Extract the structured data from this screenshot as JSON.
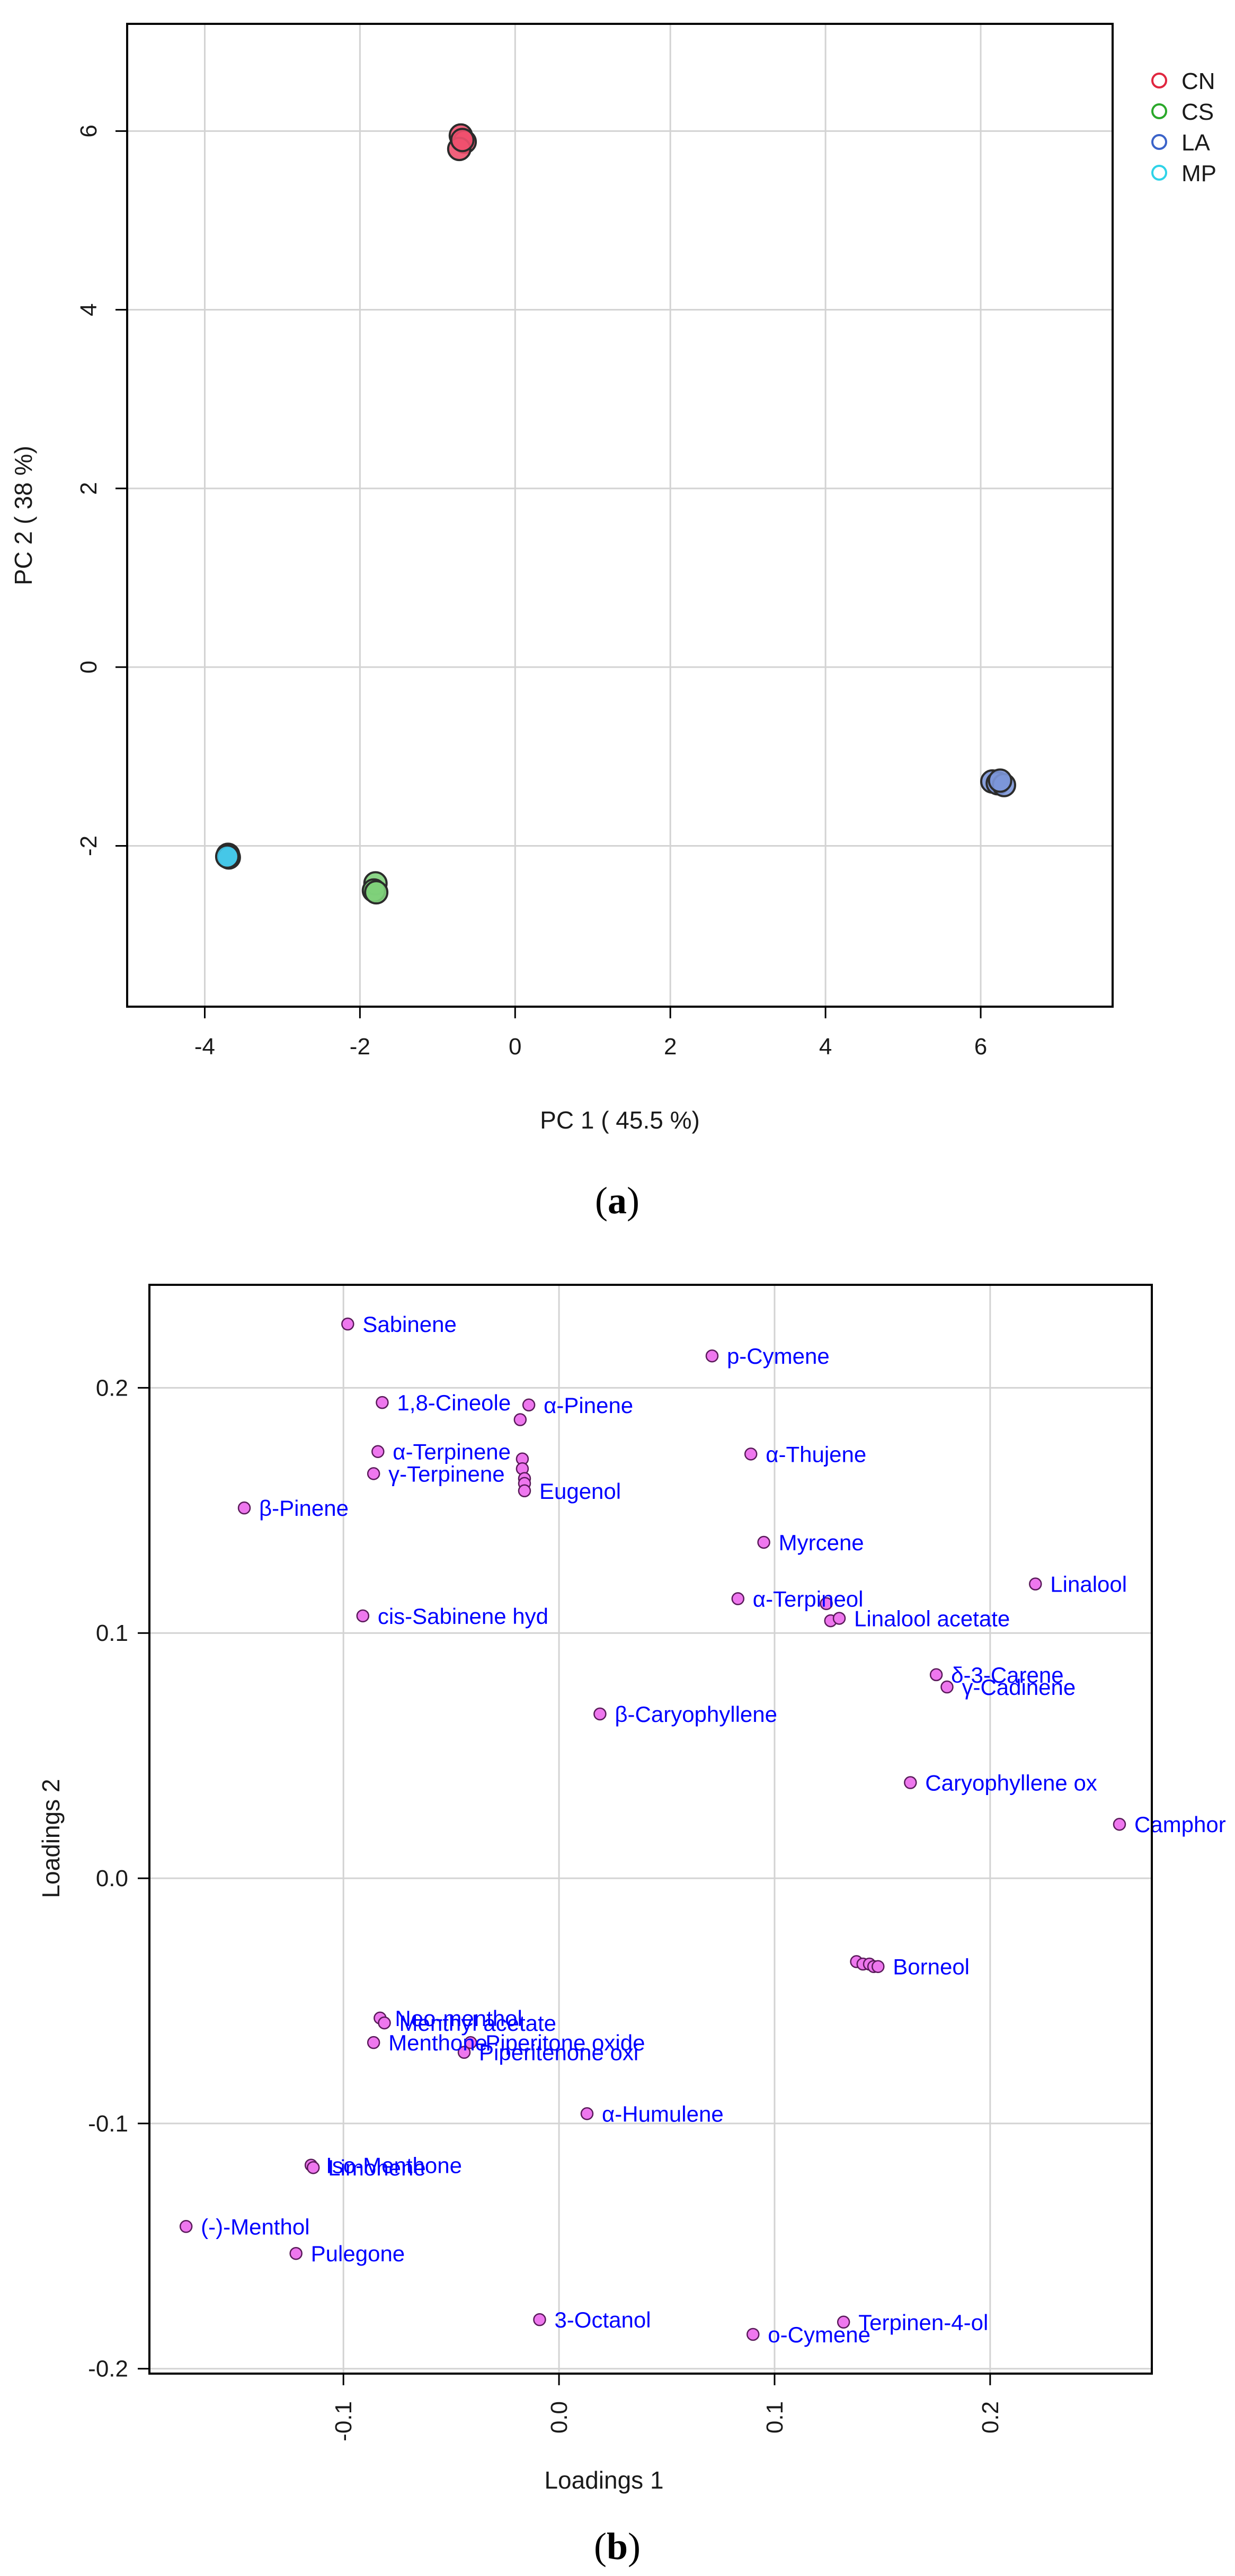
{
  "panels": {
    "a": {
      "caption_letter": "a",
      "caption_open": "(",
      "caption_close": ")"
    },
    "b": {
      "caption_letter": "b",
      "caption_open": "(",
      "caption_close": ")"
    }
  },
  "colors": {
    "CN": "#f0506e",
    "CS": "#7ed07a",
    "LA": "#7c96d8",
    "MP": "#45c6e8",
    "legend_CN": "#e0263f",
    "legend_CS": "#2aa82a",
    "legend_LA": "#3b63c9",
    "legend_MP": "#2ed3e8",
    "loading_fill": "#ee77ee",
    "loading_label": "#0000ff"
  },
  "chart_data": [
    {
      "type": "scatter",
      "title": "",
      "xlabel": "PC 1 ( 45.5 %)",
      "ylabel": "PC 2 ( 38 %)",
      "xlim": [
        -5.0,
        7.7
      ],
      "ylim": [
        -3.8,
        7.2
      ],
      "xticks": [
        -4,
        -2,
        0,
        2,
        4,
        6
      ],
      "yticks": [
        -2,
        0,
        2,
        4,
        6
      ],
      "grid": true,
      "legend": "top-right",
      "series": [
        {
          "name": "CN",
          "points": [
            [
              -0.7,
              5.95
            ],
            [
              -0.65,
              5.88
            ],
            [
              -0.72,
              5.8
            ],
            [
              -0.68,
              5.9
            ]
          ]
        },
        {
          "name": "CS",
          "points": [
            [
              -1.8,
              -2.42
            ],
            [
              -1.82,
              -2.5
            ],
            [
              -1.79,
              -2.52
            ]
          ]
        },
        {
          "name": "LA",
          "points": [
            [
              6.15,
              -1.28
            ],
            [
              6.22,
              -1.3
            ],
            [
              6.3,
              -1.32
            ],
            [
              6.25,
              -1.27
            ]
          ]
        },
        {
          "name": "MP",
          "points": [
            [
              -3.7,
              -2.1
            ],
            [
              -3.69,
              -2.13
            ],
            [
              -3.71,
              -2.12
            ]
          ]
        }
      ]
    },
    {
      "type": "scatter",
      "title": "",
      "xlabel": "Loadings 1",
      "ylabel": "Loadings 2",
      "xlim": [
        -0.19,
        0.275
      ],
      "ylim": [
        -0.202,
        0.242
      ],
      "xticks": [
        -0.1,
        0.0,
        0.1,
        0.2
      ],
      "yticks": [
        -0.2,
        -0.1,
        0.0,
        0.1,
        0.2
      ],
      "grid": true,
      "legend": "none",
      "points": [
        {
          "name": "Sabinene",
          "x": -0.098,
          "y": 0.226
        },
        {
          "name": "p-Cymene",
          "x": 0.071,
          "y": 0.213
        },
        {
          "name": "1,8-Cineole",
          "x": -0.082,
          "y": 0.194
        },
        {
          "name": "α-Pinene",
          "x": -0.014,
          "y": 0.193
        },
        {
          "name": "α-Terpinene",
          "x": -0.084,
          "y": 0.174
        },
        {
          "name": "α-Thujene",
          "x": 0.089,
          "y": 0.173
        },
        {
          "name": "γ-Terpinene",
          "x": -0.086,
          "y": 0.165
        },
        {
          "name": "Eugenol",
          "x": -0.016,
          "y": 0.158
        },
        {
          "name": "β-Pinene",
          "x": -0.146,
          "y": 0.151
        },
        {
          "name": "Myrcene",
          "x": 0.095,
          "y": 0.137
        },
        {
          "name": "Linalool",
          "x": 0.221,
          "y": 0.12
        },
        {
          "name": "α-Terpineol",
          "x": 0.083,
          "y": 0.114
        },
        {
          "name": "cis-Sabinene hyd",
          "x": -0.091,
          "y": 0.107
        },
        {
          "name": "Linalool acetate",
          "x": 0.13,
          "y": 0.106
        },
        {
          "name": "δ-3-Carene",
          "x": 0.175,
          "y": 0.083
        },
        {
          "name": "γ-Cadinene",
          "x": 0.18,
          "y": 0.078
        },
        {
          "name": "β-Caryophyllene",
          "x": 0.019,
          "y": 0.067
        },
        {
          "name": "Caryophyllene ox",
          "x": 0.163,
          "y": 0.039
        },
        {
          "name": "Camphor",
          "x": 0.26,
          "y": 0.022
        },
        {
          "name": "Borneol",
          "x": 0.148,
          "y": -0.036
        },
        {
          "name": "Neo-menthol",
          "x": -0.083,
          "y": -0.057
        },
        {
          "name": "Menthyl acetate",
          "x": -0.081,
          "y": -0.059
        },
        {
          "name": "Menthone",
          "x": -0.086,
          "y": -0.067
        },
        {
          "name": "Piperitone oxide",
          "x": -0.041,
          "y": -0.067
        },
        {
          "name": "Piperitenone oxi",
          "x": -0.044,
          "y": -0.071
        },
        {
          "name": "α-Humulene",
          "x": 0.013,
          "y": -0.096
        },
        {
          "name": "Iso-Menthone",
          "x": -0.115,
          "y": -0.117
        },
        {
          "name": "Limonene",
          "x": -0.114,
          "y": -0.118
        },
        {
          "name": "(-)-Menthol",
          "x": -0.173,
          "y": -0.142
        },
        {
          "name": "Pulegone",
          "x": -0.122,
          "y": -0.153
        },
        {
          "name": "3-Octanol",
          "x": -0.009,
          "y": -0.18
        },
        {
          "name": "o-Cymene",
          "x": 0.09,
          "y": -0.186
        },
        {
          "name": "Terpinen-4-ol",
          "x": 0.132,
          "y": -0.181
        }
      ],
      "extra_points": [
        {
          "x": -0.018,
          "y": 0.187
        },
        {
          "x": -0.017,
          "y": 0.171
        },
        {
          "x": -0.017,
          "y": 0.167
        },
        {
          "x": -0.016,
          "y": 0.163
        },
        {
          "x": -0.016,
          "y": 0.161
        },
        {
          "x": 0.124,
          "y": 0.112
        },
        {
          "x": 0.126,
          "y": 0.105
        },
        {
          "x": 0.138,
          "y": -0.034
        },
        {
          "x": 0.141,
          "y": -0.035
        },
        {
          "x": 0.144,
          "y": -0.035
        },
        {
          "x": 0.146,
          "y": -0.036
        }
      ]
    }
  ]
}
